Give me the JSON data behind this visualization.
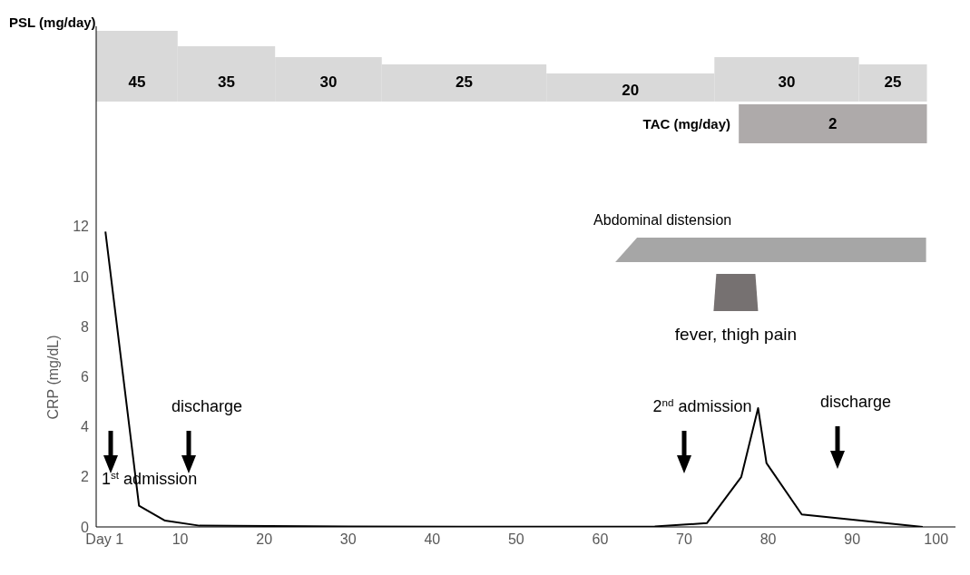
{
  "chart_data": {
    "type": "line",
    "ylabel": "CRP (mg/dL)",
    "x": [
      1.1,
      5.1,
      8.2,
      12.3,
      30,
      50,
      66.5,
      72.7,
      76.8,
      78.8,
      79.8,
      84.0,
      98.4
    ],
    "values": [
      11.8,
      0.85,
      0.25,
      0.05,
      0.02,
      0.01,
      0.02,
      0.15,
      2.0,
      4.75,
      2.55,
      0.5,
      0
    ],
    "color": "#000000",
    "xlim": [
      0,
      102.3
    ],
    "xticks": [
      {
        "value": 1,
        "label": "Day 1"
      },
      10,
      20,
      30,
      40,
      50,
      60,
      70,
      80,
      90,
      100
    ],
    "ylim": [
      0,
      20
    ],
    "yticks": [
      0,
      2,
      4,
      6,
      8,
      10,
      12
    ],
    "grid": false,
    "marker": "none",
    "line_style": "solid",
    "annotations": [
      "PSL (mg/day)",
      "TAC (mg/day)",
      "1$^{st}$ admission",
      "discharge",
      "2$^{nd}$ admission",
      "discharge"
    ],
    "bands": [
      {
        "axis": "x",
        "from": 0,
        "to": 9.7,
        "label": "45",
        "color": "#d9d9d9"
      },
      {
        "axis": "x",
        "from": 9.7,
        "to": 21.3,
        "label": "35",
        "color": "#d9d9d9"
      },
      {
        "axis": "x",
        "from": 21.3,
        "to": 34,
        "label": "30",
        "color": "#d9d9d9"
      },
      {
        "axis": "x",
        "from": 34,
        "to": 53.6,
        "label": "25",
        "color": "#d9d9d9"
      },
      {
        "axis": "x",
        "from": 53.6,
        "to": 73.6,
        "label": "20",
        "color": "#d9d9d9"
      },
      {
        "axis": "x",
        "from": 73.6,
        "to": 90.8,
        "label": "30",
        "color": "#d9d9d9"
      },
      {
        "axis": "x",
        "from": 90.8,
        "to": 98.9,
        "label": "25",
        "color": "#d9d9d9"
      },
      {
        "axis": "x",
        "from": 76.5,
        "to": 98.9,
        "label": "2",
        "color": "#aeaaaa"
      },
      {
        "axis": "x",
        "from": 61.8,
        "to": 98.8,
        "label": "Abdominal distension",
        "color": "#a6a6a6"
      },
      {
        "axis": "x",
        "from": 73.5,
        "to": 78.8,
        "label": "fever, thigh pain",
        "color": "#767171"
      }
    ]
  }
}
